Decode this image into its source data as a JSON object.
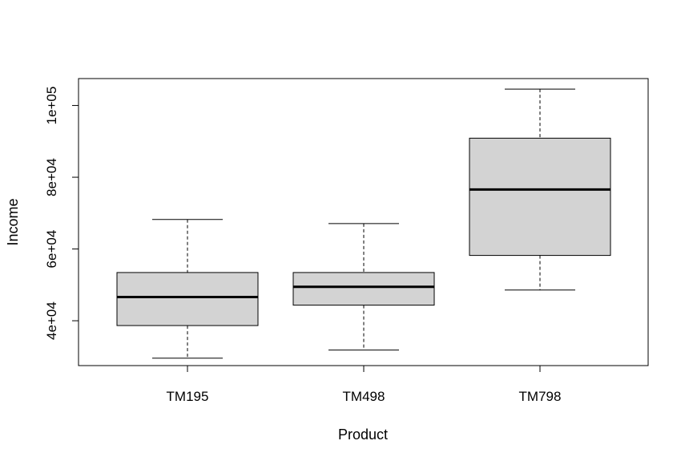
{
  "chart_data": {
    "type": "box",
    "title": "",
    "xlabel": "Product",
    "ylabel": "Income",
    "categories": [
      "TM195",
      "TM498",
      "TM798"
    ],
    "boxes": [
      {
        "category": "TM195",
        "whisker_low": 29562,
        "q1": 38658,
        "median": 46617,
        "q3": 53439,
        "whisker_high": 68220
      },
      {
        "category": "TM498",
        "whisker_low": 31836,
        "q1": 44343,
        "median": 49460,
        "q3": 53439,
        "whisker_high": 67083
      },
      {
        "category": "TM798",
        "whisker_low": 48556,
        "q1": 58204,
        "median": 76568,
        "q3": 90886,
        "whisker_high": 104581
      }
    ],
    "y_ticks": [
      40000,
      60000,
      80000,
      100000
    ],
    "y_tick_labels": [
      "4e+04",
      "6e+04",
      "8e+04",
      "1e+05"
    ],
    "ylim": [
      27500,
      107500
    ],
    "box_fill": "#d3d3d3",
    "grid": false,
    "legend": "none"
  }
}
